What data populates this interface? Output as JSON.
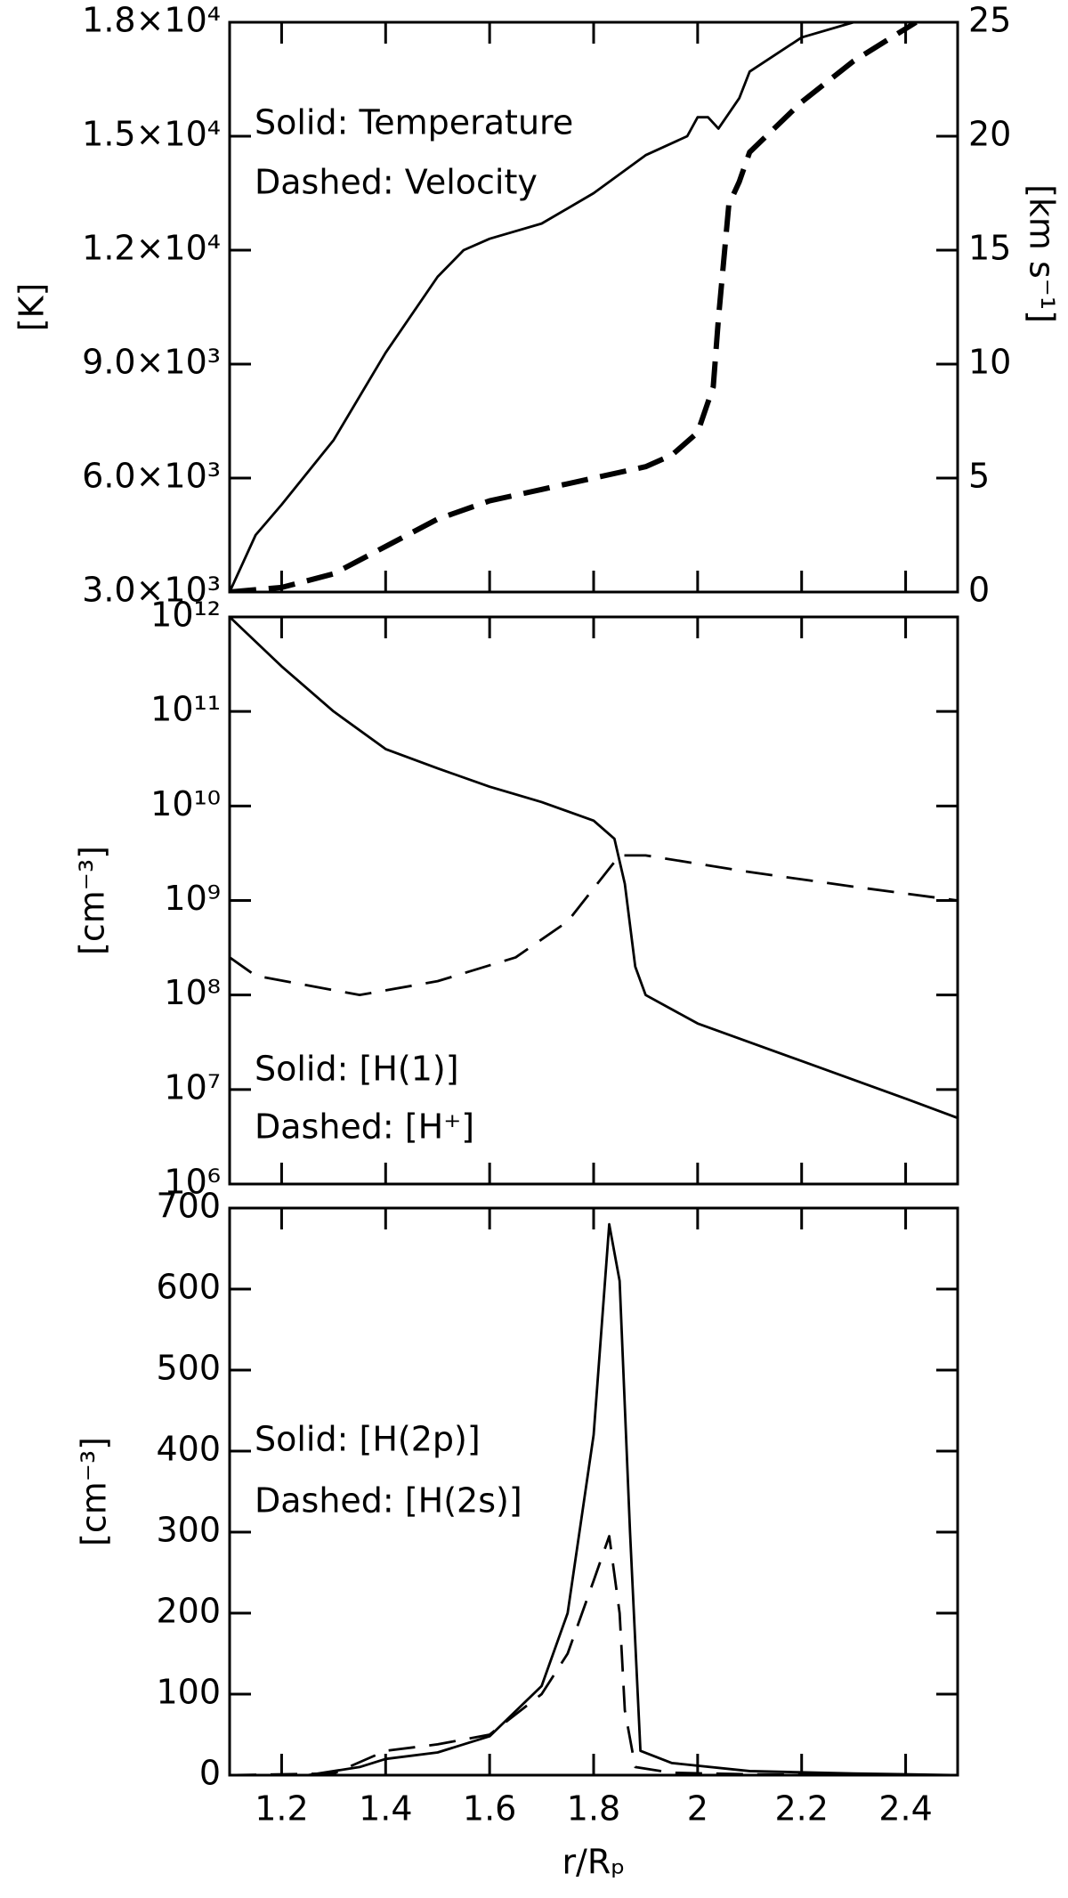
{
  "chart_data": [
    {
      "type": "line",
      "annotations": [
        "Solid: Temperature",
        "Dashed: Velocity"
      ],
      "ylabel": "[K]",
      "y2label": "[km s⁻¹]",
      "xlim": [
        1.1,
        2.5
      ],
      "xticks": [
        1.2,
        1.4,
        1.6,
        1.8,
        2.0,
        2.2,
        2.4
      ],
      "ylim": [
        3000,
        18000
      ],
      "yticks": [
        {
          "value": 3000,
          "label": "3.0×10³"
        },
        {
          "value": 6000,
          "label": "6.0×10³"
        },
        {
          "value": 9000,
          "label": "9.0×10³"
        },
        {
          "value": 12000,
          "label": "1.2×10⁴"
        },
        {
          "value": 15000,
          "label": "1.5×10⁴"
        },
        {
          "value": 18000,
          "label": "1.8×10⁴"
        }
      ],
      "y2lim": [
        0,
        25
      ],
      "y2ticks": [
        0,
        5,
        10,
        15,
        20,
        25
      ],
      "series": [
        {
          "color": "#000000",
          "dashed": false,
          "x": [
            1.1,
            1.15,
            1.2,
            1.3,
            1.4,
            1.5,
            1.55,
            1.6,
            1.7,
            1.8,
            1.9,
            1.98,
            2.0,
            2.02,
            2.04,
            2.08,
            2.1,
            2.2,
            2.3
          ],
          "values": [
            3000,
            4500,
            5300,
            7000,
            9300,
            11300,
            12000,
            12300,
            12700,
            13500,
            14500,
            15000,
            15500,
            15500,
            15200,
            16000,
            16700,
            17600,
            18000
          ]
        },
        {
          "color": "#000000",
          "dashed": true,
          "axis": "y2",
          "x": [
            1.1,
            1.2,
            1.3,
            1.4,
            1.5,
            1.6,
            1.7,
            1.8,
            1.9,
            1.95,
            2.0,
            2.03,
            2.04,
            2.06,
            2.08,
            2.1,
            2.2,
            2.3,
            2.42
          ],
          "values": [
            0,
            0.2,
            0.8,
            2,
            3.2,
            4,
            4.5,
            5,
            5.5,
            6,
            7,
            9,
            12,
            17,
            18,
            19.3,
            21.5,
            23.3,
            25
          ]
        }
      ]
    },
    {
      "type": "line",
      "log": true,
      "annotations": [
        "Solid: [H(1)]",
        "Dashed: [H⁺]"
      ],
      "ylabel": "[cm⁻³]",
      "xlim": [
        1.1,
        2.5
      ],
      "xticks": [
        1.2,
        1.4,
        1.6,
        1.8,
        2.0,
        2.2,
        2.4
      ],
      "ylim": [
        1000000,
        1000000000000
      ],
      "yticks": [
        {
          "value": 1000000,
          "label": "10⁶"
        },
        {
          "value": 10000000,
          "label": "10⁷"
        },
        {
          "value": 100000000,
          "label": "10⁸"
        },
        {
          "value": 1000000000,
          "label": "10⁹"
        },
        {
          "value": 10000000000,
          "label": "10¹⁰"
        },
        {
          "value": 100000000000,
          "label": "10¹¹"
        },
        {
          "value": 1000000000000,
          "label": "10¹²"
        }
      ],
      "series": [
        {
          "color": "#000000",
          "dashed": false,
          "x": [
            1.1,
            1.2,
            1.3,
            1.4,
            1.5,
            1.6,
            1.7,
            1.8,
            1.84,
            1.86,
            1.88,
            1.9,
            2.0,
            2.2,
            2.4,
            2.5
          ],
          "values": [
            1000000000000,
            300000000000,
            100000000000,
            40000000000,
            25000000000,
            16000000000,
            11000000000,
            7000000000,
            4500000000,
            1500000000,
            200000000,
            100000000,
            50000000,
            20000000,
            8000000,
            5000000
          ]
        },
        {
          "color": "#000000",
          "dashed": true,
          "x": [
            1.1,
            1.15,
            1.35,
            1.5,
            1.65,
            1.75,
            1.85,
            1.9,
            2.1,
            2.3,
            2.5
          ],
          "values": [
            250000000,
            160000000,
            100000000,
            140000000,
            250000000,
            600000000,
            3000000000,
            3000000000,
            2000000000,
            1400000000,
            1000000000
          ]
        }
      ]
    },
    {
      "type": "line",
      "annotations": [
        "Solid: [H(2p)]",
        "Dashed: [H(2s)]"
      ],
      "ylabel": "[cm⁻³]",
      "xlabel": "r/Rₚ",
      "xlim": [
        1.1,
        2.5
      ],
      "xticks": [
        1.2,
        1.4,
        1.6,
        1.8,
        2.0,
        2.2,
        2.4
      ],
      "ylim": [
        0,
        700
      ],
      "yticks": [
        0,
        100,
        200,
        300,
        400,
        500,
        600,
        700
      ],
      "series": [
        {
          "color": "#000000",
          "dashed": false,
          "x": [
            1.1,
            1.25,
            1.35,
            1.4,
            1.5,
            1.6,
            1.7,
            1.75,
            1.8,
            1.83,
            1.85,
            1.87,
            1.89,
            1.95,
            2.1,
            2.3,
            2.5
          ],
          "values": [
            0,
            0,
            10,
            20,
            28,
            48,
            110,
            200,
            420,
            680,
            610,
            300,
            30,
            15,
            5,
            2,
            0
          ]
        },
        {
          "color": "#000000",
          "dashed": true,
          "x": [
            1.1,
            1.3,
            1.4,
            1.5,
            1.6,
            1.7,
            1.75,
            1.8,
            1.83,
            1.85,
            1.86,
            1.88,
            1.95,
            2.1,
            2.5
          ],
          "values": [
            0,
            2,
            30,
            38,
            50,
            100,
            150,
            240,
            295,
            200,
            80,
            10,
            3,
            1,
            0
          ]
        }
      ]
    }
  ]
}
